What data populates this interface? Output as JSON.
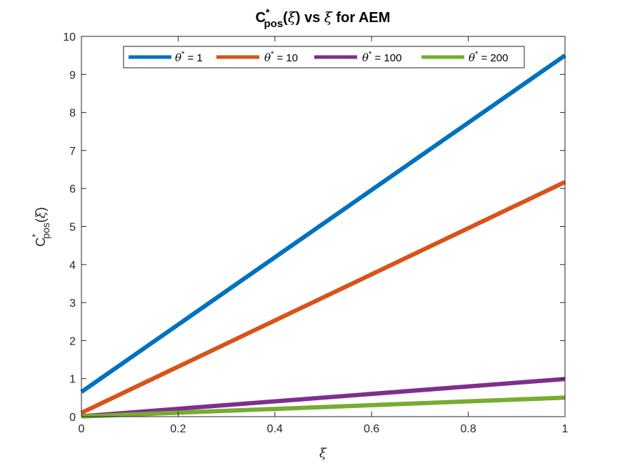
{
  "chart_data": {
    "type": "line",
    "title": {
      "main": "C",
      "sup": "*",
      "sub": "pos",
      "open": "(",
      "var": "ξ",
      "close": ")",
      "mid": " vs ",
      "var2": "ξ",
      "tail": " for AEM"
    },
    "xlabel": "ξ",
    "ylabel": {
      "main": "C",
      "sup": "*",
      "sub": "pos",
      "open": "(",
      "var": "ξ",
      "close": ")"
    },
    "xlim": [
      0,
      1
    ],
    "ylim": [
      0,
      10
    ],
    "xticks": [
      "0",
      "0.2",
      "0.4",
      "0.6",
      "0.8",
      "1"
    ],
    "yticks": [
      "0",
      "1",
      "2",
      "3",
      "4",
      "5",
      "6",
      "7",
      "8",
      "9",
      "10"
    ],
    "grid": false,
    "legend_position": "top",
    "legend_symbol": "θ",
    "legend_sup": "*",
    "series": [
      {
        "name": "θ* = 1",
        "label_rest": " = 1",
        "color": "#0072BD",
        "x": [
          0,
          1
        ],
        "y": [
          0.65,
          9.5
        ]
      },
      {
        "name": "θ* = 10",
        "label_rest": " = 10",
        "color": "#D95319",
        "x": [
          0,
          1
        ],
        "y": [
          0.1,
          6.17
        ]
      },
      {
        "name": "θ* = 100",
        "label_rest": " = 100",
        "color": "#7E2F8E",
        "x": [
          0,
          1
        ],
        "y": [
          0.01,
          0.99
        ]
      },
      {
        "name": "θ* = 200",
        "label_rest": " = 200",
        "color": "#77AC30",
        "x": [
          0,
          1
        ],
        "y": [
          0.005,
          0.5
        ]
      }
    ]
  }
}
